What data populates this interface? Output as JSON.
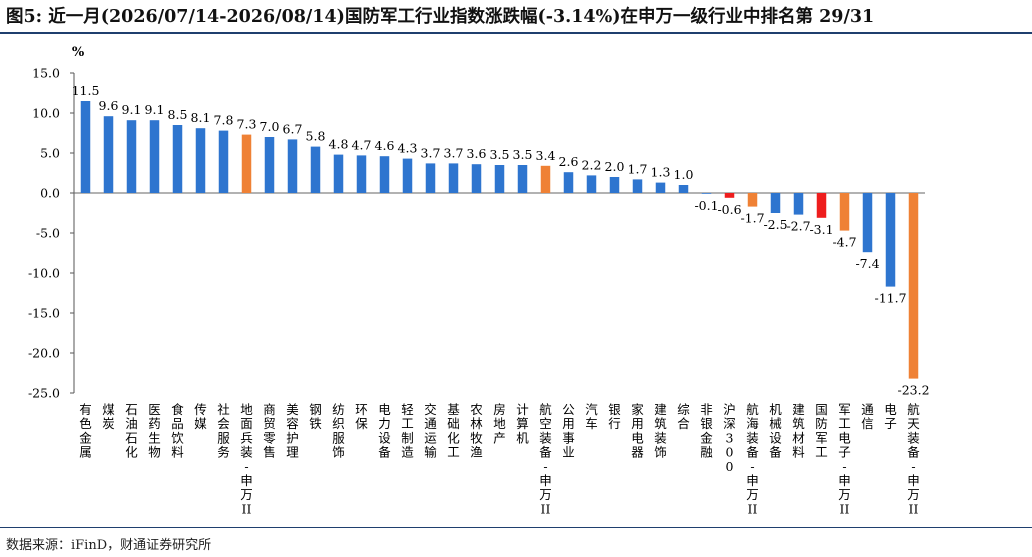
{
  "title": "图5: 近一月(2026/07/14-2026/08/14)国防军工行业指数涨跌幅(-3.14%)在申万一级行业中排名第 29/31",
  "source": "数据来源：iFinD，财通证券研究所",
  "colors": {
    "default": "#2e75cf",
    "highlight": "#ef8135",
    "negative_key": "#ee1d1d",
    "rule": "#1f3f6e"
  },
  "chart_data": {
    "type": "bar",
    "ylabel": "%",
    "ylim": [
      -25,
      15
    ],
    "yticks": [
      "15.0",
      "10.0",
      "5.0",
      "0.0",
      "-5.0",
      "-10.0",
      "-15.0",
      "-20.0",
      "-25.0"
    ],
    "grid": false,
    "legend": "none",
    "categories": [
      "有色金属",
      "煤炭",
      "石油石化",
      "医药生物",
      "食品饮料",
      "传媒",
      "社会服务",
      "地面兵装Ⅱ",
      "商贸零售",
      "美容护理",
      "钢铁",
      "纺织服饰",
      "环保",
      "电力设备",
      "轻工制造",
      "交通运输",
      "基础化工",
      "农林牧渔",
      "房地产",
      "计算机",
      "航空装备Ⅱ",
      "公用事业",
      "汽车",
      "银行",
      "家用电器",
      "建筑装饰",
      "综合",
      "非银金融",
      "沪深300",
      "航海装备Ⅱ",
      "机械设备",
      "建筑材料",
      "国防军工",
      "军工电子Ⅱ",
      "通信",
      "电子",
      "航天装备Ⅱ"
    ],
    "category_label_lines": [
      [
        "有",
        "色",
        "金",
        "属"
      ],
      [
        "煤",
        "炭"
      ],
      [
        "石",
        "油",
        "石",
        "化"
      ],
      [
        "医",
        "药",
        "生",
        "物"
      ],
      [
        "食",
        "品",
        "饮",
        "料"
      ],
      [
        "传",
        "媒"
      ],
      [
        "社",
        "会",
        "服",
        "务"
      ],
      [
        "地",
        "面",
        "兵",
        "装",
        "-",
        "申",
        "万",
        "II"
      ],
      [
        "商",
        "贸",
        "零",
        "售"
      ],
      [
        "美",
        "容",
        "护",
        "理"
      ],
      [
        "钢",
        "铁"
      ],
      [
        "纺",
        "织",
        "服",
        "饰"
      ],
      [
        "环",
        "保"
      ],
      [
        "电",
        "力",
        "设",
        "备"
      ],
      [
        "轻",
        "工",
        "制",
        "造"
      ],
      [
        "交",
        "通",
        "运",
        "输"
      ],
      [
        "基",
        "础",
        "化",
        "工"
      ],
      [
        "农",
        "林",
        "牧",
        "渔"
      ],
      [
        "房",
        "地",
        "产"
      ],
      [
        "计",
        "算",
        "机"
      ],
      [
        "航",
        "空",
        "装",
        "备",
        "-",
        "申",
        "万",
        "II"
      ],
      [
        "公",
        "用",
        "事",
        "业"
      ],
      [
        "汽",
        "车"
      ],
      [
        "银",
        "行"
      ],
      [
        "家",
        "用",
        "电",
        "器"
      ],
      [
        "建",
        "筑",
        "装",
        "饰"
      ],
      [
        "综",
        "合"
      ],
      [
        "非",
        "银",
        "金",
        "融"
      ],
      [
        "沪",
        "深",
        "3",
        "0",
        "0"
      ],
      [
        "航",
        "海",
        "装",
        "备",
        "-",
        "申",
        "万",
        "II"
      ],
      [
        "机",
        "械",
        "设",
        "备"
      ],
      [
        "建",
        "筑",
        "材",
        "料"
      ],
      [
        "国",
        "防",
        "军",
        "工"
      ],
      [
        "军",
        "工",
        "电",
        "子",
        "-",
        "申",
        "万",
        "II"
      ],
      [
        "通",
        "信"
      ],
      [
        "电",
        "子"
      ],
      [
        "航",
        "天",
        "装",
        "备",
        "-",
        "申",
        "万",
        "II"
      ]
    ],
    "values": [
      11.5,
      9.6,
      9.1,
      9.1,
      8.5,
      8.1,
      7.8,
      7.3,
      7.0,
      6.7,
      5.8,
      4.8,
      4.7,
      4.6,
      4.3,
      3.7,
      3.7,
      3.6,
      3.5,
      3.5,
      3.4,
      2.6,
      2.2,
      2.0,
      1.7,
      1.3,
      1.0,
      -0.1,
      -0.6,
      -1.7,
      -2.5,
      -2.7,
      -3.1,
      -4.7,
      -7.4,
      -11.7,
      -23.2
    ],
    "bar_colors": [
      "default",
      "default",
      "default",
      "default",
      "default",
      "default",
      "default",
      "highlight",
      "default",
      "default",
      "default",
      "default",
      "default",
      "default",
      "default",
      "default",
      "default",
      "default",
      "default",
      "default",
      "highlight",
      "default",
      "default",
      "default",
      "default",
      "default",
      "default",
      "default",
      "negative_key",
      "highlight",
      "default",
      "default",
      "negative_key",
      "highlight",
      "default",
      "default",
      "highlight"
    ]
  }
}
